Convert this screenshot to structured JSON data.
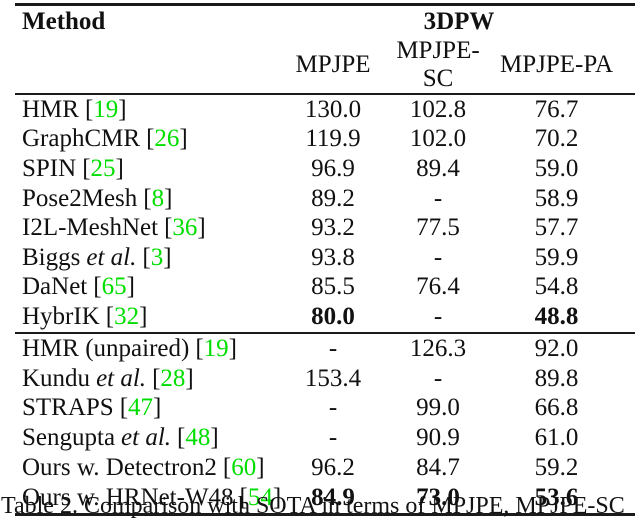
{
  "colors": {
    "citation": "#00de00",
    "text": "#111111",
    "rule": "#1b1b1b",
    "background": "#ffffff"
  },
  "punct": {
    "open_bracket": "[",
    "close_bracket": "]"
  },
  "table": {
    "header": {
      "method": "Method",
      "dataset": "3DPW",
      "metrics": [
        "MPJPE",
        "MPJPE-SC",
        "MPJPE-PA"
      ]
    },
    "groups": [
      {
        "rows": [
          {
            "name": "HMR",
            "etal": "",
            "cite": "19",
            "values": [
              "130.0",
              "102.8",
              "76.7"
            ],
            "bold": [
              false,
              false,
              false
            ]
          },
          {
            "name": "GraphCMR",
            "etal": "",
            "cite": "26",
            "values": [
              "119.9",
              "102.0",
              "70.2"
            ],
            "bold": [
              false,
              false,
              false
            ]
          },
          {
            "name": "SPIN",
            "etal": "",
            "cite": "25",
            "values": [
              "96.9",
              "89.4",
              "59.0"
            ],
            "bold": [
              false,
              false,
              false
            ]
          },
          {
            "name": "Pose2Mesh",
            "etal": "",
            "cite": "8",
            "values": [
              "89.2",
              "-",
              "58.9"
            ],
            "bold": [
              false,
              false,
              false
            ]
          },
          {
            "name": "I2L-MeshNet",
            "etal": "",
            "cite": "36",
            "values": [
              "93.2",
              "77.5",
              "57.7"
            ],
            "bold": [
              false,
              false,
              false
            ]
          },
          {
            "name": "Biggs",
            "etal": "et al.",
            "cite": "3",
            "values": [
              "93.8",
              "-",
              "59.9"
            ],
            "bold": [
              false,
              false,
              false
            ]
          },
          {
            "name": "DaNet",
            "etal": "",
            "cite": "65",
            "values": [
              "85.5",
              "76.4",
              "54.8"
            ],
            "bold": [
              false,
              false,
              false
            ]
          },
          {
            "name": "HybrIK",
            "etal": "",
            "cite": "32",
            "values": [
              "80.0",
              "-",
              "48.8"
            ],
            "bold": [
              true,
              false,
              true
            ]
          }
        ]
      },
      {
        "rows": [
          {
            "name": "HMR (unpaired)",
            "etal": "",
            "cite": "19",
            "values": [
              "-",
              "126.3",
              "92.0"
            ],
            "bold": [
              false,
              false,
              false
            ]
          },
          {
            "name": "Kundu",
            "etal": "et al.",
            "cite": "28",
            "values": [
              "153.4",
              "-",
              "89.8"
            ],
            "bold": [
              false,
              false,
              false
            ]
          },
          {
            "name": "STRAPS",
            "etal": "",
            "cite": "47",
            "values": [
              "-",
              "99.0",
              "66.8"
            ],
            "bold": [
              false,
              false,
              false
            ]
          },
          {
            "name": "Sengupta",
            "etal": "et al.",
            "cite": "48",
            "values": [
              "-",
              "90.9",
              "61.0"
            ],
            "bold": [
              false,
              false,
              false
            ]
          },
          {
            "name": "Ours w. Detectron2",
            "etal": "",
            "cite": "60",
            "values": [
              "96.2",
              "84.7",
              "59.2"
            ],
            "bold": [
              false,
              false,
              false
            ]
          },
          {
            "name": "Ours w. HRNet-W48",
            "etal": "",
            "cite": "54",
            "values": [
              "84.9",
              "73.0",
              "53.6"
            ],
            "bold": [
              true,
              true,
              true
            ]
          }
        ]
      }
    ]
  },
  "caption": "Table 2. Comparison with SOTA in terms of MPJPE, MPJPE-SC"
}
